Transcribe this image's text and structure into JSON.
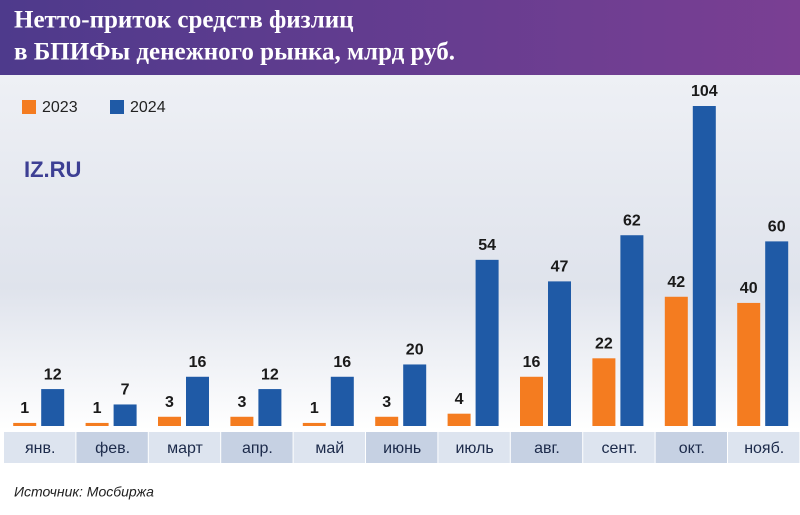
{
  "chart_data": {
    "type": "bar",
    "title": [
      "Нетто-приток средств физлиц",
      "в БПИФы денежного рынка, млрд руб."
    ],
    "logo": "IZ.RU",
    "source": "Источник: Мосбиржа",
    "categories": [
      "янв.",
      "фев.",
      "март",
      "апр.",
      "май",
      "июнь",
      "июль",
      "авг.",
      "сент.",
      "окт.",
      "нояб."
    ],
    "series": [
      {
        "name": "2023",
        "color": "#f47c20",
        "values": [
          1,
          1,
          3,
          3,
          1,
          3,
          4,
          16,
          22,
          42,
          40
        ]
      },
      {
        "name": "2024",
        "color": "#1f5aa6",
        "values": [
          12,
          7,
          16,
          12,
          16,
          20,
          54,
          47,
          62,
          104,
          60
        ]
      }
    ]
  }
}
